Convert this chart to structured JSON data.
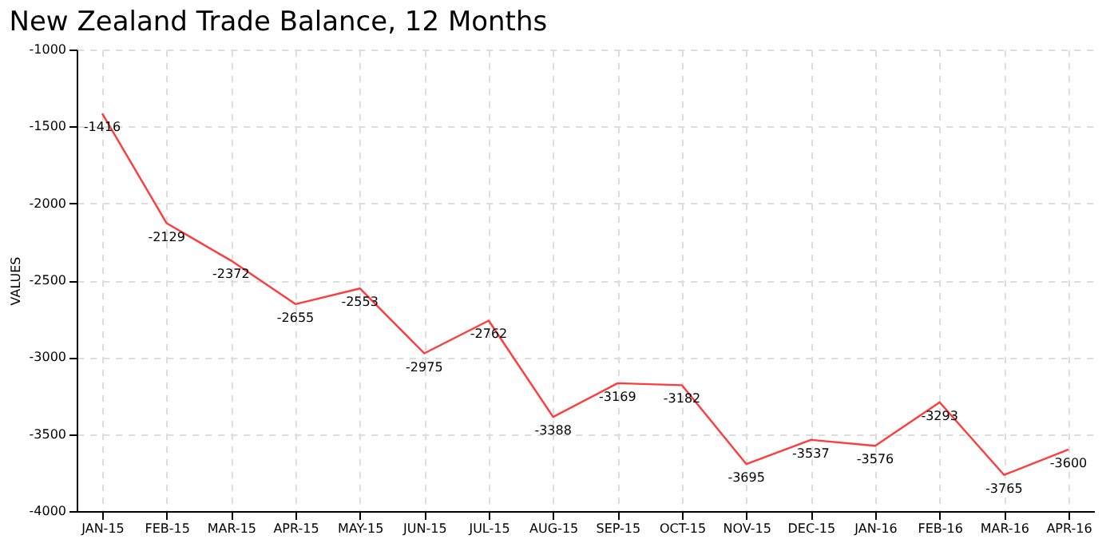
{
  "chart_data": {
    "type": "line",
    "title": "New Zealand Trade Balance, 12 Months",
    "ylabel": "VALUES",
    "categories": [
      "JAN-15",
      "FEB-15",
      "MAR-15",
      "APR-15",
      "MAY-15",
      "JUN-15",
      "JUL-15",
      "AUG-15",
      "SEP-15",
      "OCT-15",
      "NOV-15",
      "DEC-15",
      "JAN-16",
      "FEB-16",
      "MAR-16",
      "APR-16"
    ],
    "series": [
      {
        "color": "#ff3b3b",
        "values": [
          -1416,
          -2129,
          -2372,
          -2655,
          -2553,
          -2975,
          -2762,
          -3388,
          -3169,
          -3182,
          -3695,
          -3537,
          -3576,
          -3293,
          -3765,
          -3600
        ]
      }
    ],
    "ylim": [
      -4000,
      -1000
    ],
    "yticks": [
      -4000,
      -3500,
      -3000,
      -2500,
      -2000,
      -1500,
      -1000
    ],
    "grid": true,
    "data_labels": true,
    "marker": "none",
    "line_style": "solid"
  }
}
